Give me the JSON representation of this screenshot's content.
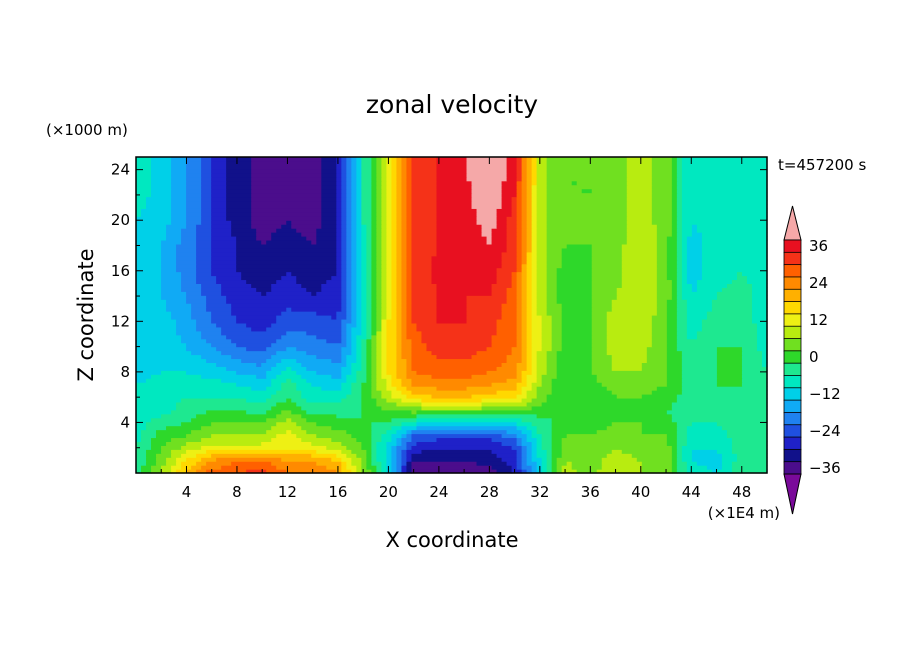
{
  "chart_data": {
    "type": "heatmap",
    "title": "zonal velocity",
    "xlabel": "X coordinate",
    "ylabel": "Z coordinate",
    "x_scale_label": "(×1E4 m)",
    "y_scale_label": "(×1000 m)",
    "time_label": "t=457200 s",
    "xlim": [
      0,
      50
    ],
    "ylim": [
      0,
      25
    ],
    "x_ticks": [
      4,
      8,
      12,
      16,
      20,
      24,
      28,
      32,
      36,
      40,
      44,
      48
    ],
    "y_ticks": [
      4,
      8,
      12,
      16,
      20,
      24
    ],
    "colorbar": {
      "levels": [
        -40,
        -36,
        -32,
        -28,
        -24,
        -20,
        -16,
        -12,
        -8,
        -4,
        0,
        4,
        8,
        12,
        16,
        20,
        24,
        28,
        32,
        36,
        40
      ],
      "tick_labels": [
        "36",
        "24",
        "12",
        "0",
        "−12",
        "−24",
        "−36"
      ],
      "tick_values": [
        36,
        24,
        12,
        0,
        -12,
        -24,
        -36
      ],
      "colors": [
        "#7a0a9a",
        "#4b0d8c",
        "#11118a",
        "#1f21c8",
        "#1f50e0",
        "#1f82f0",
        "#10aaf5",
        "#00d0e8",
        "#00e8c0",
        "#1ee890",
        "#2ed82a",
        "#70e020",
        "#b8ec10",
        "#eef014",
        "#ffd800",
        "#ffb000",
        "#ff8a00",
        "#ff6000",
        "#f53218",
        "#e81020",
        "#f5a8a8"
      ]
    },
    "x_columns_1E4m": [
      0,
      2,
      4,
      6,
      8,
      10,
      12,
      14,
      16,
      18,
      20,
      22,
      24,
      26,
      28,
      30,
      32,
      34,
      36,
      38,
      40,
      42,
      44,
      46,
      48,
      50
    ],
    "z_rows_1000m": [
      0,
      1,
      2,
      3,
      4,
      5,
      6,
      7,
      8,
      10,
      12,
      14,
      16,
      18,
      20,
      22,
      25
    ],
    "u_values_ms": [
      [
        -4,
        6,
        20,
        28,
        30,
        32,
        26,
        26,
        22,
        6,
        -10,
        -38,
        -38,
        -38,
        -36,
        -30,
        -10,
        8,
        4,
        10,
        6,
        4,
        -8,
        -10,
        -2,
        -4
      ],
      [
        -6,
        4,
        14,
        22,
        26,
        26,
        22,
        22,
        18,
        4,
        -12,
        -34,
        -34,
        -34,
        -32,
        -28,
        -10,
        6,
        4,
        8,
        6,
        4,
        -10,
        -12,
        -4,
        -6
      ],
      [
        -6,
        2,
        8,
        12,
        12,
        12,
        14,
        12,
        8,
        2,
        -12,
        -28,
        -30,
        -30,
        -30,
        -26,
        -8,
        4,
        4,
        6,
        4,
        4,
        -10,
        -10,
        -4,
        -6
      ],
      [
        -8,
        0,
        2,
        6,
        6,
        6,
        12,
        6,
        4,
        0,
        -8,
        -22,
        -24,
        -24,
        -24,
        -20,
        -6,
        2,
        2,
        4,
        2,
        2,
        -8,
        -8,
        -4,
        -6
      ],
      [
        -8,
        -4,
        -2,
        2,
        2,
        2,
        8,
        2,
        0,
        -2,
        -2,
        -8,
        -12,
        -12,
        -12,
        -10,
        -4,
        0,
        0,
        2,
        2,
        0,
        -6,
        -6,
        -4,
        -6
      ],
      [
        -10,
        -8,
        -4,
        -2,
        -2,
        -4,
        2,
        -4,
        -4,
        -2,
        2,
        4,
        4,
        4,
        4,
        4,
        0,
        -2,
        -2,
        0,
        0,
        -2,
        -4,
        -4,
        -4,
        -6
      ],
      [
        -10,
        -8,
        -6,
        -6,
        -6,
        -8,
        -2,
        -8,
        -8,
        -2,
        8,
        16,
        18,
        18,
        16,
        14,
        4,
        -2,
        -2,
        2,
        2,
        0,
        -4,
        -4,
        -2,
        -6
      ],
      [
        -10,
        -8,
        -8,
        -8,
        -10,
        -12,
        -4,
        -10,
        -12,
        -2,
        12,
        22,
        24,
        24,
        22,
        20,
        6,
        -2,
        0,
        4,
        4,
        2,
        -4,
        -2,
        -2,
        -6
      ],
      [
        -12,
        -10,
        -10,
        -12,
        -14,
        -16,
        -8,
        -14,
        -16,
        -4,
        14,
        26,
        28,
        28,
        26,
        24,
        8,
        -2,
        2,
        6,
        6,
        2,
        -4,
        -2,
        -2,
        -6
      ],
      [
        -12,
        -12,
        -14,
        -18,
        -22,
        -24,
        -18,
        -20,
        -22,
        -6,
        14,
        28,
        32,
        32,
        30,
        26,
        10,
        0,
        2,
        8,
        8,
        2,
        -6,
        -2,
        -2,
        -8
      ],
      [
        -12,
        -12,
        -16,
        -22,
        -26,
        -28,
        -24,
        -24,
        -26,
        -8,
        14,
        30,
        34,
        34,
        32,
        26,
        10,
        0,
        2,
        8,
        10,
        2,
        -8,
        -4,
        -4,
        -8
      ],
      [
        -12,
        -14,
        -18,
        -24,
        -28,
        -30,
        -28,
        -30,
        -28,
        -8,
        12,
        30,
        34,
        34,
        34,
        28,
        8,
        0,
        2,
        6,
        10,
        4,
        -10,
        -6,
        -4,
        -8
      ],
      [
        -12,
        -14,
        -20,
        -26,
        -30,
        -32,
        -30,
        -32,
        -30,
        -8,
        10,
        30,
        36,
        34,
        36,
        30,
        8,
        0,
        2,
        4,
        10,
        4,
        -12,
        -8,
        -6,
        -8
      ],
      [
        -10,
        -14,
        -20,
        -26,
        -30,
        -34,
        -32,
        -34,
        -30,
        -8,
        10,
        30,
        34,
        34,
        38,
        32,
        8,
        2,
        2,
        4,
        10,
        4,
        -12,
        -8,
        -6,
        -8
      ],
      [
        -10,
        -12,
        -18,
        -26,
        -32,
        -36,
        -34,
        -36,
        -30,
        -6,
        10,
        30,
        34,
        36,
        40,
        32,
        8,
        2,
        2,
        4,
        8,
        4,
        -10,
        -8,
        -6,
        -8
      ],
      [
        -8,
        -12,
        -18,
        -26,
        -32,
        -36,
        -36,
        -36,
        -30,
        -6,
        10,
        30,
        34,
        36,
        42,
        34,
        8,
        2,
        2,
        4,
        8,
        4,
        -10,
        -8,
        -6,
        -8
      ],
      [
        -8,
        -12,
        -18,
        -26,
        -32,
        -36,
        -36,
        -36,
        -30,
        -6,
        10,
        30,
        34,
        38,
        44,
        36,
        8,
        2,
        2,
        4,
        8,
        4,
        -10,
        -8,
        -6,
        -8
      ]
    ]
  }
}
